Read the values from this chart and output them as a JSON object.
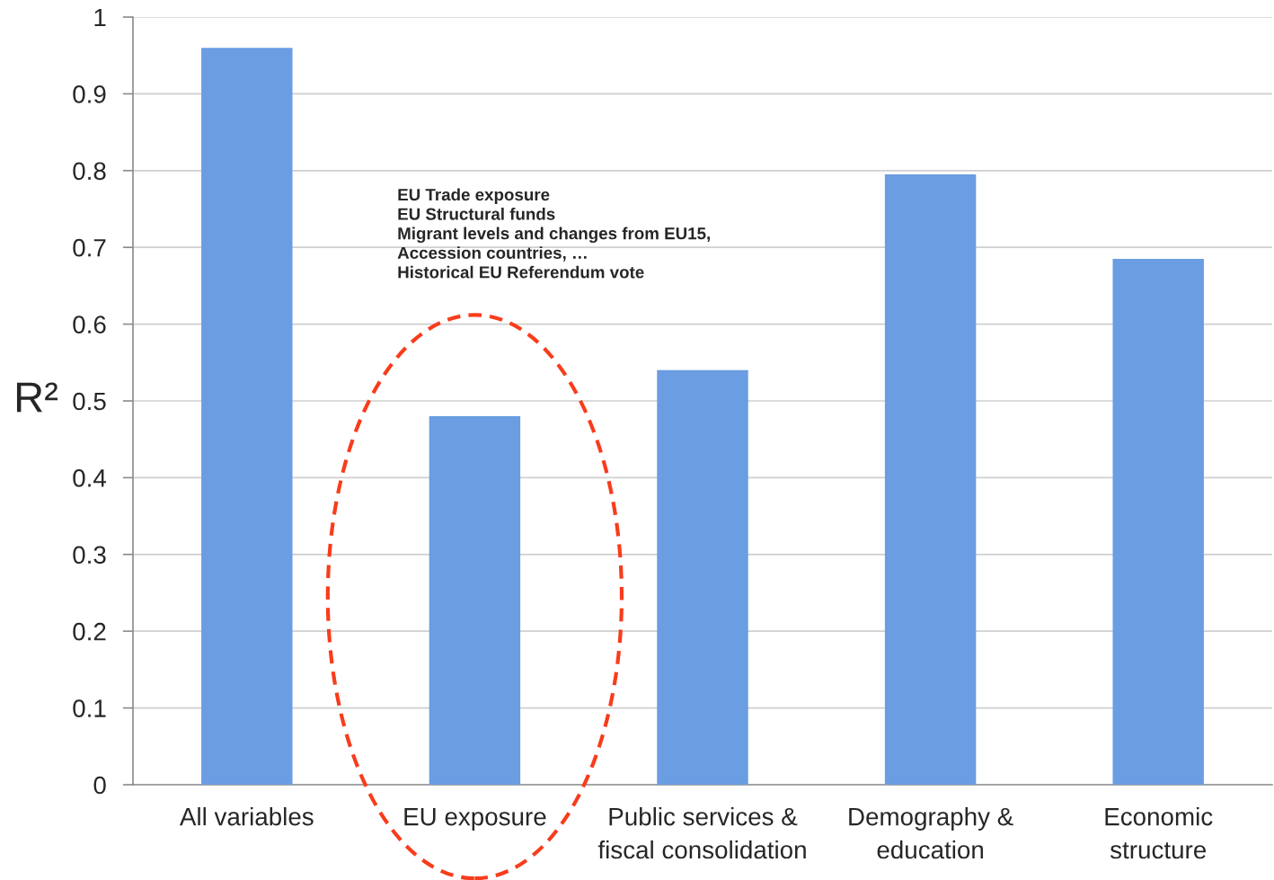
{
  "chart_data": {
    "type": "bar",
    "ylabel": "R²",
    "categories": [
      "All variables",
      "EU exposure",
      "Public services &\nfiscal consolidation",
      "Demography &\neducation",
      "Economic\nstructure"
    ],
    "values": [
      0.96,
      0.48,
      0.54,
      0.795,
      0.685
    ],
    "color": "#6a9de2",
    "ylim": [
      0,
      1
    ],
    "yticks": [
      0,
      0.1,
      0.2,
      0.3,
      0.4,
      0.5,
      0.6,
      0.7,
      0.8,
      0.9,
      1
    ],
    "grid": "y",
    "annotations": [
      "EU Trade exposure\nEU Structural funds\nMigrant levels and changes from EU15,\nAccession countries, …\nHistorical EU Referendum vote"
    ]
  }
}
